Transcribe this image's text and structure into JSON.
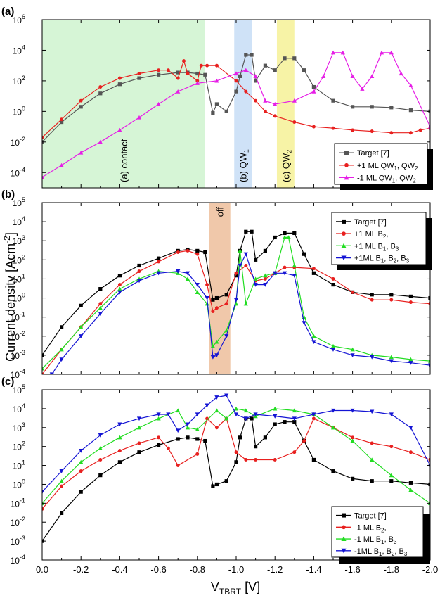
{
  "x_axis": {
    "label_main": "V",
    "label_sub": "TBRT",
    "label_unit": " [V]",
    "ticks": [
      "0.0",
      "-0.2",
      "-0.4",
      "-0.6",
      "-0.8",
      "-1.0",
      "-1.2",
      "-1.4",
      "-1.6",
      "-1.8",
      "-2.0"
    ]
  },
  "y_axis_label_main": "Current density [Acm",
  "y_axis_label_sup": "-2",
  "y_axis_label_end": "]",
  "chart_data": [
    {
      "type": "line",
      "panel_label": "(a)",
      "x_range": [
        0,
        -2.0
      ],
      "ylim": [
        1e-05,
        1000000
      ],
      "y_scale": "log",
      "y_ticks": [
        {
          "b": "10",
          "e": "-4"
        },
        {
          "b": "10",
          "e": "-2"
        },
        {
          "b": "10",
          "e": "0"
        },
        {
          "b": "10",
          "e": "2"
        },
        {
          "b": "10",
          "e": "4"
        },
        {
          "b": "10",
          "e": "6"
        }
      ],
      "legend_position": "bottom-right",
      "regions": [
        {
          "x0": 0.0,
          "x1": -0.84,
          "color": "#d6f5d6",
          "label": "(a) contact"
        },
        {
          "x0": -0.99,
          "x1": -1.08,
          "color": "#cfe2f7",
          "label": "(b) QW",
          "label_sub": "1"
        },
        {
          "x0": -1.21,
          "x1": -1.3,
          "color": "#f7f3a6",
          "label": "(c) QW",
          "label_sub": "2"
        }
      ],
      "series": [
        {
          "name": "Target [7]",
          "color": "#555555",
          "marker": "square",
          "x": [
            0.0,
            -0.1,
            -0.2,
            -0.3,
            -0.4,
            -0.5,
            -0.6,
            -0.7,
            -0.75,
            -0.8,
            -0.84,
            -0.88,
            -0.9,
            -0.95,
            -1.0,
            -1.02,
            -1.05,
            -1.08,
            -1.1,
            -1.15,
            -1.2,
            -1.25,
            -1.3,
            -1.35,
            -1.4,
            -1.5,
            -1.6,
            -1.7,
            -1.8,
            -1.9,
            -2.0
          ],
          "y": [
            0.01,
            0.2,
            2,
            15,
            60,
            150,
            250,
            350,
            350,
            300,
            250,
            0.8,
            3,
            1,
            20,
            200,
            5000,
            5000,
            100,
            1000,
            500,
            3000,
            3000,
            500,
            40,
            5,
            2,
            2,
            1.8,
            1.2,
            1
          ]
        },
        {
          "name": "+1 ML QW",
          "name_sub1": "1",
          "name_mid": ", QW",
          "name_sub2": "2",
          "color": "#e8201f",
          "marker": "circle",
          "x": [
            0.0,
            -0.1,
            -0.2,
            -0.3,
            -0.4,
            -0.5,
            -0.6,
            -0.65,
            -0.7,
            -0.73,
            -0.75,
            -0.8,
            -0.82,
            -0.85,
            -0.9,
            -1.0,
            -1.05,
            -1.1,
            -1.15,
            -1.2,
            -1.3,
            -1.4,
            -1.5,
            -1.6,
            -1.7,
            -1.8,
            -1.9,
            -1.95,
            -2.0
          ],
          "y": [
            0.02,
            0.3,
            5,
            40,
            150,
            300,
            500,
            500,
            150,
            2000,
            300,
            100,
            1000,
            1000,
            1000,
            100,
            20,
            5,
            1,
            0.5,
            0.2,
            0.1,
            0.08,
            0.06,
            0.05,
            0.04,
            0.04,
            0.06,
            0.08
          ]
        },
        {
          "name": "-1 ML QW",
          "name_sub1": "1",
          "name_mid": ", QW",
          "name_sub2": "2",
          "color": "#e61ee6",
          "marker": "triangle",
          "x": [
            0.0,
            -0.1,
            -0.2,
            -0.3,
            -0.4,
            -0.5,
            -0.6,
            -0.7,
            -0.8,
            -0.9,
            -1.0,
            -1.05,
            -1.1,
            -1.15,
            -1.2,
            -1.3,
            -1.4,
            -1.45,
            -1.5,
            -1.55,
            -1.6,
            -1.65,
            -1.7,
            -1.75,
            -1.8,
            -1.85,
            -1.9,
            -2.0
          ],
          "y": [
            5e-05,
            0.0003,
            0.002,
            0.01,
            0.06,
            0.4,
            3,
            20,
            70,
            100,
            300,
            500,
            200,
            5,
            3,
            5,
            20,
            200,
            7000,
            7000,
            200,
            30,
            200,
            7000,
            7000,
            300,
            50,
            0.1
          ]
        }
      ]
    },
    {
      "type": "line",
      "panel_label": "(b)",
      "x_range": [
        0,
        -2.0
      ],
      "ylim": [
        0.0001,
        100000
      ],
      "y_scale": "log",
      "y_ticks": [
        {
          "b": "10",
          "e": "-4"
        },
        {
          "b": "10",
          "e": "-3"
        },
        {
          "b": "10",
          "e": "-2"
        },
        {
          "b": "10",
          "e": "-1"
        },
        {
          "b": "10",
          "e": "0"
        },
        {
          "b": "10",
          "e": "1"
        },
        {
          "b": "10",
          "e": "2"
        },
        {
          "b": "10",
          "e": "3"
        },
        {
          "b": "10",
          "e": "4"
        },
        {
          "b": "10",
          "e": "5"
        }
      ],
      "legend_position": "top-right",
      "regions": [
        {
          "x0": -0.86,
          "x1": -0.97,
          "color": "#f0c8aa",
          "label": "off"
        }
      ],
      "series": [
        {
          "name": "Target [7]",
          "color": "#000000",
          "marker": "square",
          "x": [
            0.0,
            -0.1,
            -0.2,
            -0.3,
            -0.4,
            -0.5,
            -0.6,
            -0.7,
            -0.75,
            -0.8,
            -0.84,
            -0.88,
            -0.9,
            -0.95,
            -1.0,
            -1.02,
            -1.05,
            -1.08,
            -1.1,
            -1.15,
            -1.2,
            -1.25,
            -1.3,
            -1.35,
            -1.4,
            -1.5,
            -1.6,
            -1.7,
            -1.8,
            -1.9,
            -2.0
          ],
          "y": [
            0.001,
            0.03,
            0.4,
            3,
            15,
            50,
            120,
            300,
            350,
            300,
            250,
            0.8,
            1,
            1.5,
            15,
            300,
            3000,
            3000,
            100,
            300,
            1500,
            2500,
            2500,
            200,
            20,
            5,
            2,
            1.5,
            1.5,
            1.2,
            1
          ]
        },
        {
          "name": "+1 ML B",
          "name_sub1": "2",
          "name_mid": ",",
          "color": "#e8201f",
          "marker": "circle",
          "x": [
            0.0,
            -0.1,
            -0.2,
            -0.3,
            -0.4,
            -0.5,
            -0.6,
            -0.7,
            -0.75,
            -0.8,
            -0.85,
            -0.88,
            -0.9,
            -0.95,
            -1.0,
            -1.05,
            -1.1,
            -1.15,
            -1.2,
            -1.25,
            -1.3,
            -1.4,
            -1.5,
            -1.6,
            -1.7,
            -1.8,
            -1.9,
            -2.0
          ],
          "y": [
            0.0001,
            0.002,
            0.03,
            0.5,
            5,
            25,
            80,
            250,
            300,
            200,
            5,
            0.2,
            0.3,
            0.5,
            20,
            50,
            8,
            10,
            20,
            40,
            40,
            35,
            10,
            2,
            0.8,
            0.8,
            0.6,
            0.5
          ]
        },
        {
          "name": "+1 ML B",
          "name_sub1": "1",
          "name_mid": ", B",
          "name_sub2": "3",
          "color": "#22dd22",
          "marker": "triangle",
          "x": [
            0.0,
            -0.1,
            -0.2,
            -0.3,
            -0.4,
            -0.5,
            -0.6,
            -0.7,
            -0.75,
            -0.8,
            -0.85,
            -0.88,
            -0.9,
            -0.95,
            -1.0,
            -1.02,
            -1.05,
            -1.1,
            -1.15,
            -1.2,
            -1.25,
            -1.27,
            -1.3,
            -1.35,
            -1.4,
            -1.5,
            -1.6,
            -1.7,
            -1.8,
            -1.9,
            -2.0
          ],
          "y": [
            0.0002,
            0.002,
            0.03,
            0.3,
            3,
            10,
            25,
            20,
            10,
            2,
            0.5,
            0.003,
            0.005,
            0.02,
            0.5,
            300,
            0.5,
            10,
            15,
            20,
            1500,
            1500,
            50,
            0.1,
            0.01,
            0.003,
            0.002,
            0.001,
            0.0008,
            0.0006,
            0.0005
          ]
        },
        {
          "name": "+1ML B",
          "name_sub1": "1",
          "name_mid": ", B",
          "name_sub2": "2",
          "name_mid2": ", B",
          "name_sub3": "3",
          "color": "#1414d4",
          "marker": "triangle-down",
          "x": [
            0.0,
            -0.05,
            -0.1,
            -0.2,
            -0.3,
            -0.4,
            -0.5,
            -0.6,
            -0.7,
            -0.75,
            -0.8,
            -0.85,
            -0.88,
            -0.9,
            -0.95,
            -1.0,
            -1.02,
            -1.05,
            -1.1,
            -1.15,
            -1.2,
            -1.25,
            -1.3,
            -1.35,
            -1.4,
            -1.5,
            -1.6,
            -1.7,
            -1.8,
            -1.9,
            -2.0
          ],
          "y": [
            5e-05,
            0.0001,
            0.0006,
            0.01,
            0.15,
            2,
            8,
            20,
            25,
            20,
            5,
            1,
            0.0008,
            0.001,
            0.01,
            0.8,
            50,
            200,
            5,
            5,
            20,
            20,
            15,
            0.05,
            0.005,
            0.002,
            0.001,
            0.0008,
            0.0005,
            0.0004,
            0.0003
          ]
        }
      ]
    },
    {
      "type": "line",
      "panel_label": "(c)",
      "x_range": [
        0,
        -2.0
      ],
      "ylim": [
        0.0001,
        100000
      ],
      "y_scale": "log",
      "y_ticks": [
        {
          "b": "10",
          "e": "-4"
        },
        {
          "b": "10",
          "e": "-3"
        },
        {
          "b": "10",
          "e": "-2"
        },
        {
          "b": "10",
          "e": "-1"
        },
        {
          "b": "10",
          "e": "0"
        },
        {
          "b": "10",
          "e": "1"
        },
        {
          "b": "10",
          "e": "2"
        },
        {
          "b": "10",
          "e": "3"
        },
        {
          "b": "10",
          "e": "4"
        },
        {
          "b": "10",
          "e": "5"
        }
      ],
      "legend_position": "bottom-right",
      "regions": [],
      "series": [
        {
          "name": "Target [7]",
          "color": "#000000",
          "marker": "square",
          "x": [
            0.0,
            -0.1,
            -0.2,
            -0.3,
            -0.4,
            -0.5,
            -0.6,
            -0.7,
            -0.75,
            -0.8,
            -0.84,
            -0.88,
            -0.9,
            -0.95,
            -1.0,
            -1.02,
            -1.05,
            -1.08,
            -1.1,
            -1.15,
            -1.2,
            -1.25,
            -1.3,
            -1.35,
            -1.4,
            -1.5,
            -1.6,
            -1.7,
            -1.8,
            -1.9,
            -2.0
          ],
          "y": [
            0.001,
            0.03,
            0.4,
            3,
            15,
            50,
            120,
            250,
            300,
            250,
            200,
            0.8,
            1,
            1.5,
            15,
            300,
            3000,
            3000,
            100,
            300,
            1500,
            2000,
            2000,
            200,
            20,
            5,
            2,
            1.5,
            1.5,
            1.2,
            1
          ]
        },
        {
          "name": "-1 ML B",
          "name_sub1": "2",
          "name_mid": ",",
          "color": "#e8201f",
          "marker": "circle",
          "x": [
            0.0,
            -0.1,
            -0.2,
            -0.3,
            -0.4,
            -0.5,
            -0.6,
            -0.65,
            -0.7,
            -0.8,
            -0.85,
            -0.9,
            -0.95,
            -1.0,
            -1.05,
            -1.1,
            -1.2,
            -1.3,
            -1.35,
            -1.4,
            -1.5,
            -1.6,
            -1.7,
            -1.8,
            -1.9,
            -2.0
          ],
          "y": [
            0.05,
            0.8,
            5,
            20,
            60,
            150,
            300,
            80,
            10,
            40,
            3000,
            1000,
            3000,
            50,
            20,
            20,
            20,
            50,
            200,
            3000,
            1000,
            300,
            150,
            100,
            50,
            20
          ]
        },
        {
          "name": "-1 ML B",
          "name_sub1": "1",
          "name_mid": ", B",
          "name_sub2": "3",
          "color": "#22dd22",
          "marker": "triangle",
          "x": [
            0.0,
            -0.1,
            -0.2,
            -0.3,
            -0.4,
            -0.5,
            -0.6,
            -0.7,
            -0.75,
            -0.8,
            -0.9,
            -0.95,
            -1.0,
            -1.05,
            -1.1,
            -1.2,
            -1.3,
            -1.4,
            -1.5,
            -1.6,
            -1.7,
            -1.8,
            -1.9,
            -2.0
          ],
          "y": [
            0.1,
            1.5,
            15,
            80,
            300,
            1000,
            3000,
            8000,
            1000,
            800,
            8000,
            3000,
            10000,
            8000,
            4000,
            10000,
            8000,
            5000,
            1000,
            200,
            20,
            3,
            0.5,
            0.1
          ]
        },
        {
          "name": "-1ML B",
          "name_sub1": "1",
          "name_mid": ", B",
          "name_sub2": "2",
          "name_mid2": ", B",
          "name_sub3": "3",
          "color": "#1414d4",
          "marker": "triangle-down",
          "x": [
            0.0,
            -0.1,
            -0.2,
            -0.3,
            -0.4,
            -0.5,
            -0.6,
            -0.65,
            -0.7,
            -0.75,
            -0.8,
            -0.85,
            -0.9,
            -0.95,
            -1.0,
            -1.05,
            -1.1,
            -1.2,
            -1.3,
            -1.4,
            -1.5,
            -1.6,
            -1.7,
            -1.8,
            -1.9,
            -2.0
          ],
          "y": [
            0.4,
            5,
            60,
            400,
            1500,
            3000,
            5000,
            5000,
            700,
            1500,
            5000,
            15000,
            40000,
            50000,
            5000,
            3000,
            5000,
            4000,
            3000,
            5000,
            8000,
            8000,
            7000,
            5000,
            1000,
            10
          ]
        }
      ]
    }
  ]
}
